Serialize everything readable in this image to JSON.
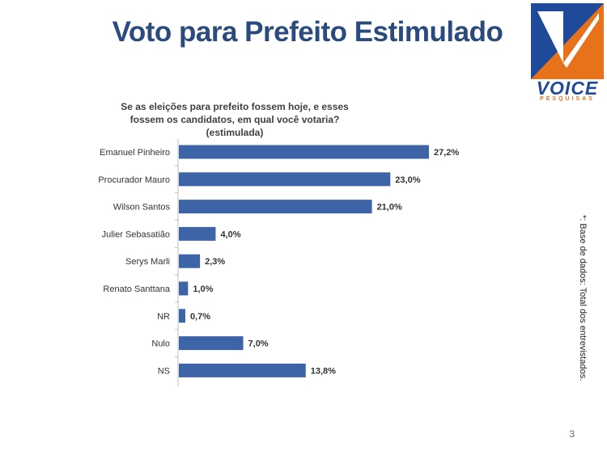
{
  "title": "Voto para Prefeito Estimulado",
  "logo": {
    "word": "VOICE",
    "sub": "PESQUISAS"
  },
  "question": "Se as eleições para prefeito fossem hoje, e esses fossem os candidatos, em qual você votaria? (estimulada)",
  "footnote": "*: Base de dados: Total dos  entrevistados.",
  "page_number": "3",
  "colors": {
    "bar": "#3e64a8",
    "title": "#2b4a7d",
    "logo_blue": "#1f4a99",
    "logo_orange": "#e8721c"
  },
  "chart_data": {
    "type": "bar",
    "orientation": "horizontal",
    "categories": [
      "Emanuel Pinheiro",
      "Procurador Mauro",
      "Wilson Santos",
      "Julier Sebasatião",
      "Serys Marli",
      "Renato Santtana",
      "NR",
      "Nulo",
      "NS"
    ],
    "values": [
      27.2,
      23.0,
      21.0,
      4.0,
      2.3,
      1.0,
      0.7,
      7.0,
      13.8
    ],
    "labels": [
      "27,2%",
      "23,0%",
      "21,0%",
      "4,0%",
      "2,3%",
      "1,0%",
      "0,7%",
      "7,0%",
      "13,8%"
    ],
    "unit": "%",
    "xlim": [
      0,
      27.2
    ],
    "grid": false,
    "legend": "none"
  }
}
